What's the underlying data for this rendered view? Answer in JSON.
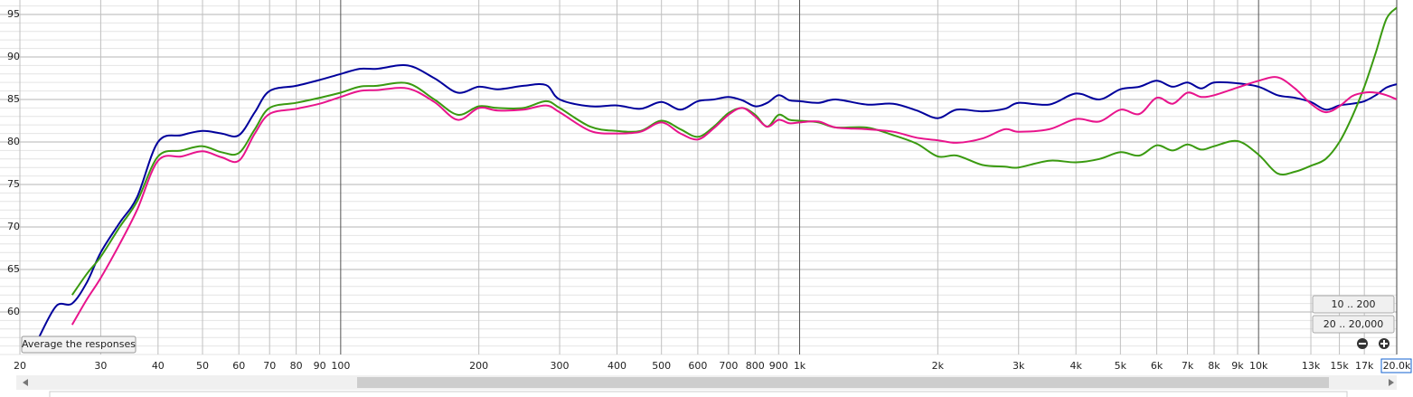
{
  "chart_data": {
    "type": "line",
    "x": [
      20,
      22,
      24,
      26,
      28,
      30,
      33,
      36,
      40,
      45,
      50,
      55,
      60,
      65,
      70,
      80,
      90,
      100,
      110,
      120,
      140,
      160,
      180,
      200,
      220,
      250,
      280,
      300,
      350,
      400,
      450,
      500,
      550,
      600,
      650,
      700,
      750,
      800,
      850,
      900,
      950,
      1000,
      1100,
      1200,
      1400,
      1600,
      1800,
      2000,
      2200,
      2500,
      2800,
      3000,
      3500,
      4000,
      4500,
      5000,
      5500,
      6000,
      6500,
      7000,
      7500,
      8000,
      9000,
      10000,
      11000,
      12000,
      13000,
      14000,
      15000,
      16000,
      17000,
      18000,
      19000,
      20000
    ],
    "series": [
      {
        "color": "#00009c",
        "values": [
          null,
          57,
          60.7,
          61,
          63.5,
          67,
          70.5,
          73.5,
          80,
          80.8,
          81.3,
          81,
          80.8,
          83.5,
          86,
          86.6,
          87.3,
          88,
          88.6,
          88.6,
          89,
          87.5,
          85.8,
          86.5,
          86.2,
          86.6,
          86.7,
          85,
          84.2,
          84.3,
          83.9,
          84.7,
          83.8,
          84.8,
          85,
          85.3,
          84.9,
          84.2,
          84.6,
          85.5,
          84.9,
          84.8,
          84.6,
          85,
          84.4,
          84.5,
          83.7,
          82.8,
          83.8,
          83.6,
          83.9,
          84.6,
          84.4,
          85.7,
          85,
          86.2,
          86.5,
          87.2,
          86.5,
          87,
          86.3,
          87,
          86.9,
          86.5,
          85.5,
          85.2,
          84.7,
          83.8,
          84.3,
          84.5,
          84.8,
          85.5,
          86.4,
          86.8
        ]
      },
      {
        "color": "#3a9a10",
        "values": [
          null,
          null,
          null,
          62,
          64.5,
          66.5,
          70,
          73,
          78.3,
          79,
          79.5,
          78.8,
          78.7,
          81.5,
          84,
          84.6,
          85.2,
          85.8,
          86.5,
          86.6,
          86.9,
          85,
          83.2,
          84.2,
          84,
          84,
          84.8,
          84,
          81.8,
          81.3,
          81.3,
          82.5,
          81.5,
          80.6,
          81.8,
          83.4,
          84,
          83.2,
          81.8,
          83.2,
          82.6,
          82.5,
          82.3,
          81.7,
          81.7,
          80.8,
          79.8,
          78.3,
          78.4,
          77.3,
          77.1,
          77,
          77.8,
          77.6,
          78,
          78.8,
          78.4,
          79.6,
          79,
          79.7,
          79.1,
          79.5,
          80.1,
          78.5,
          76.3,
          76.5,
          77.2,
          78,
          80,
          83,
          86.5,
          90.5,
          94.5,
          95.8
        ]
      },
      {
        "color": "#e8148c",
        "values": [
          null,
          null,
          null,
          58.5,
          61.5,
          64,
          68,
          72,
          77.8,
          78.3,
          78.9,
          78.2,
          77.8,
          81,
          83.3,
          83.9,
          84.5,
          85.3,
          86,
          86.1,
          86.3,
          84.7,
          82.6,
          84,
          83.7,
          83.8,
          84.3,
          83.5,
          81.3,
          81,
          81.2,
          82.3,
          81,
          80.3,
          81.6,
          83.2,
          84,
          83,
          81.8,
          82.6,
          82.2,
          82.3,
          82.4,
          81.7,
          81.5,
          81.2,
          80.5,
          80.2,
          79.9,
          80.4,
          81.5,
          81.2,
          81.5,
          82.7,
          82.4,
          83.8,
          83.3,
          85.2,
          84.5,
          85.8,
          85.3,
          85.5,
          86.4,
          87.2,
          87.6,
          86.3,
          84.5,
          83.5,
          84.2,
          85.4,
          85.8,
          85.8,
          85.5,
          85
        ]
      }
    ],
    "xlim": [
      20,
      20000
    ],
    "ylim": [
      55,
      96.7
    ],
    "log_x": true,
    "grid": true,
    "xticks": [
      20,
      30,
      40,
      50,
      60,
      70,
      80,
      90,
      100,
      200,
      300,
      400,
      500,
      600,
      700,
      800,
      900,
      {
        "value": 1000,
        "label": "1k"
      },
      {
        "value": 2000,
        "label": "2k"
      },
      {
        "value": 3000,
        "label": "3k"
      },
      {
        "value": 4000,
        "label": "4k"
      },
      {
        "value": 5000,
        "label": "5k"
      },
      {
        "value": 6000,
        "label": "6k"
      },
      {
        "value": 7000,
        "label": "7k"
      },
      {
        "value": 8000,
        "label": "8k"
      },
      {
        "value": 9000,
        "label": "9k"
      },
      {
        "value": 10000,
        "label": "10k"
      },
      {
        "value": 13000,
        "label": "13k"
      },
      {
        "value": 15000,
        "label": "15k"
      },
      {
        "value": 17000,
        "label": "17k"
      },
      {
        "value": 20000,
        "label": "20.0k"
      }
    ],
    "yticks": [
      60,
      65,
      70,
      75,
      80,
      85,
      90,
      95
    ]
  },
  "controls": {
    "average_button": "Average the responses",
    "range_buttons": [
      "10 .. 200",
      "20 .. 20,000"
    ]
  }
}
